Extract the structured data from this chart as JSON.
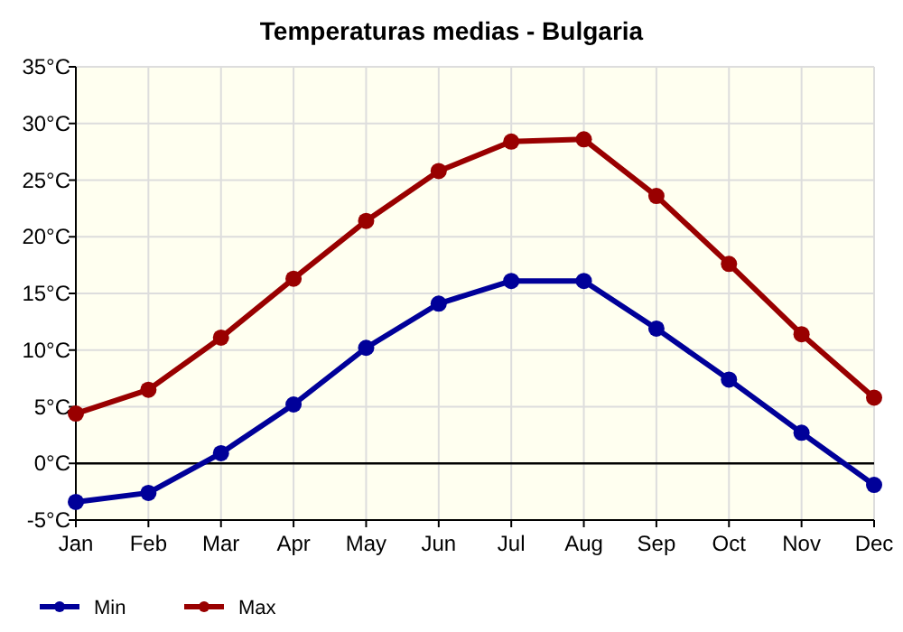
{
  "chart_data": {
    "type": "line",
    "title": "Temperaturas medias - Bulgaria",
    "categories": [
      "Jan",
      "Feb",
      "Mar",
      "Apr",
      "May",
      "Jun",
      "Jul",
      "Aug",
      "Sep",
      "Oct",
      "Nov",
      "Dec"
    ],
    "series": [
      {
        "name": "Min",
        "color": "#000099",
        "values": [
          -3.4,
          -2.6,
          0.9,
          5.2,
          10.2,
          14.1,
          16.1,
          16.1,
          11.9,
          7.4,
          2.7,
          -1.9
        ]
      },
      {
        "name": "Max",
        "color": "#990000",
        "values": [
          4.4,
          6.5,
          11.1,
          16.3,
          21.4,
          25.8,
          28.4,
          28.6,
          23.6,
          17.6,
          11.4,
          5.8
        ]
      }
    ],
    "ylim": [
      -5,
      35
    ],
    "yticks": [
      {
        "value": -5,
        "label": "-5°C"
      },
      {
        "value": 0,
        "label": "0°C"
      },
      {
        "value": 5,
        "label": "5°C"
      },
      {
        "value": 10,
        "label": "10°C"
      },
      {
        "value": 15,
        "label": "15°C"
      },
      {
        "value": 20,
        "label": "20°C"
      },
      {
        "value": 25,
        "label": "25°C"
      },
      {
        "value": 30,
        "label": "30°C"
      },
      {
        "value": 35,
        "label": "35°C"
      }
    ],
    "ref_lines": [
      {
        "axis": "y",
        "value": 0,
        "color": "#000000"
      }
    ],
    "grid": true,
    "legend": "bottom left",
    "marker": "circle",
    "line_style": "solid"
  }
}
